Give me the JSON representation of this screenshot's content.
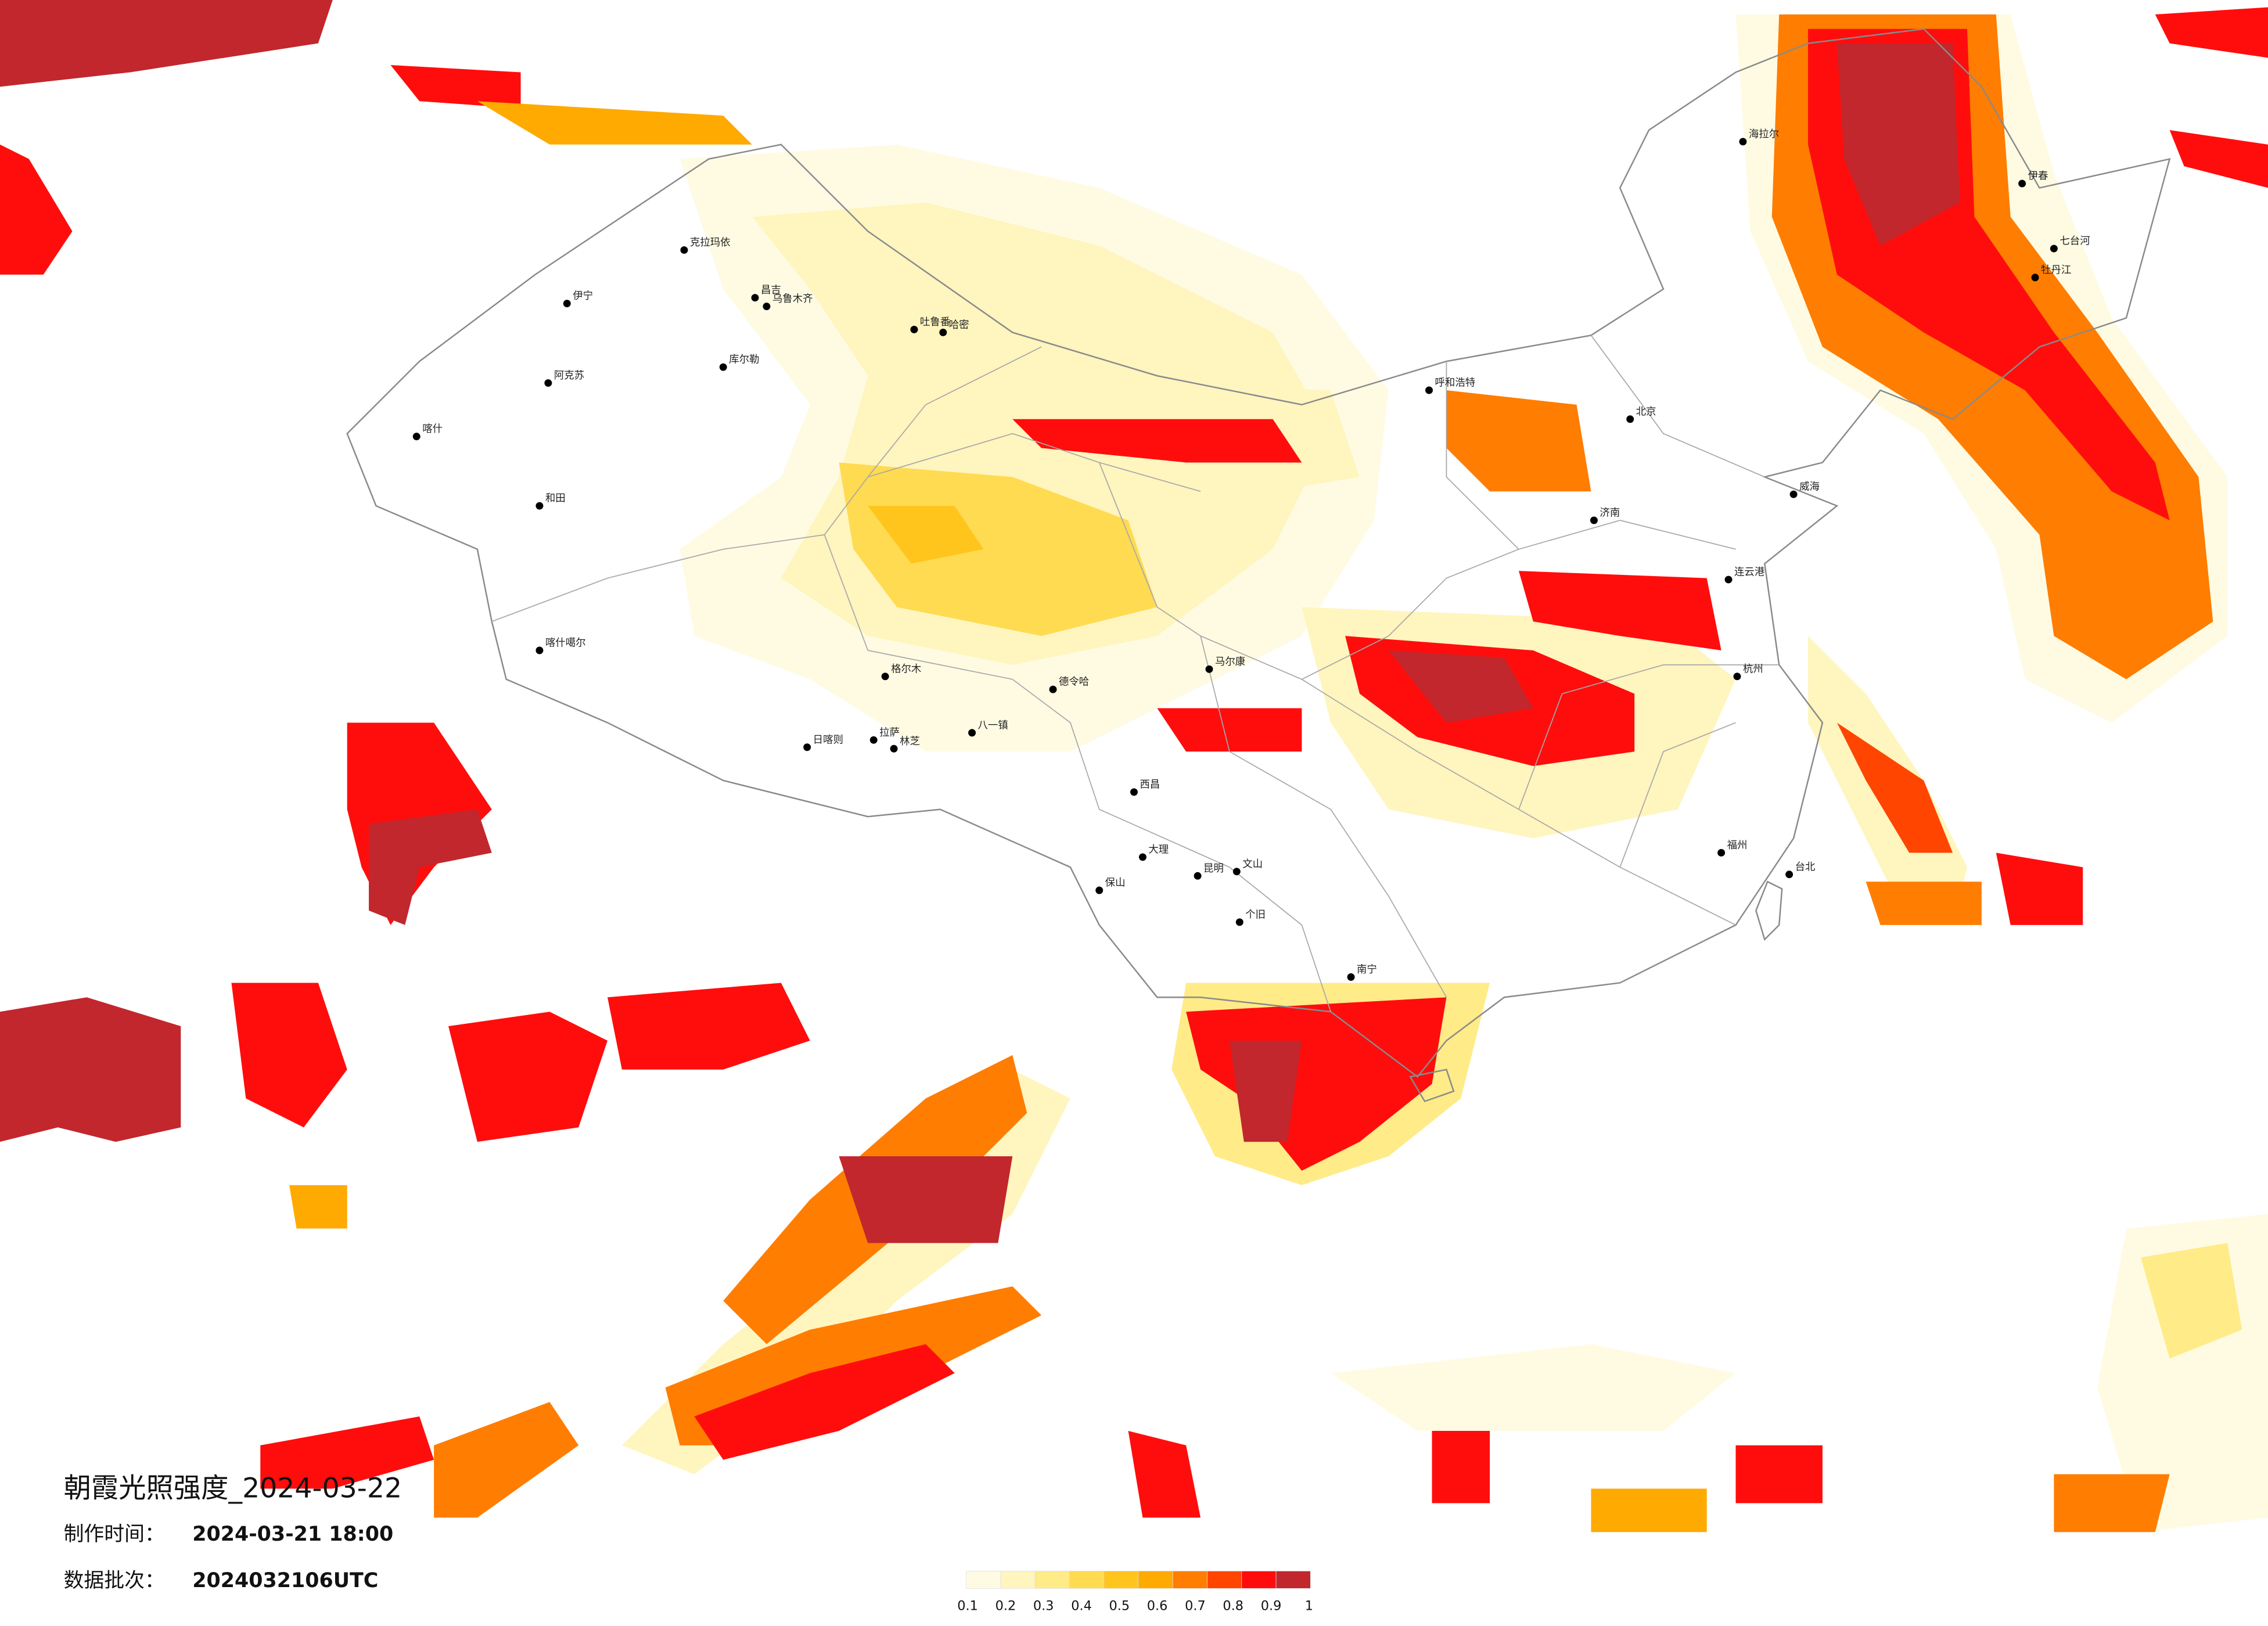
{
  "title": "朝霞光照强度_2024-03-22",
  "info": [
    {
      "label": "制作时间：",
      "value": "2024-03-21 18:00"
    },
    {
      "label": "数据批次：",
      "value": "2024032106UTC"
    }
  ],
  "legend": {
    "ticks": [
      0.1,
      0.2,
      0.3,
      0.4,
      0.5,
      0.6,
      0.7,
      0.8,
      0.9,
      1
    ],
    "colors": [
      "#fffbe3",
      "#fff5bf",
      "#ffeb88",
      "#ffdb52",
      "#ffc51c",
      "#ffaa00",
      "#ff7d00",
      "#ff4500",
      "#ff0d0d",
      "#c1272d"
    ]
  },
  "cities": [
    "海拉尔",
    "伊宁",
    "克拉玛依",
    "昌吉",
    "乌鲁木齐",
    "吐鲁番",
    "哈密",
    "库尔勒",
    "阿克苏",
    "喀什",
    "和田",
    "喀什噶尔",
    "日喀则",
    "拉萨",
    "林芝",
    "八一镇",
    "格尔木",
    "德令哈",
    "马尔康",
    "西昌",
    "大理",
    "保山",
    "昆明",
    "个旧",
    "文山",
    "南宁",
    "呼和浩特",
    "北京",
    "济南",
    "杭州",
    "福州",
    "台北",
    "伊春",
    "七台河",
    "牡丹江",
    "威海",
    "连云港"
  ]
}
